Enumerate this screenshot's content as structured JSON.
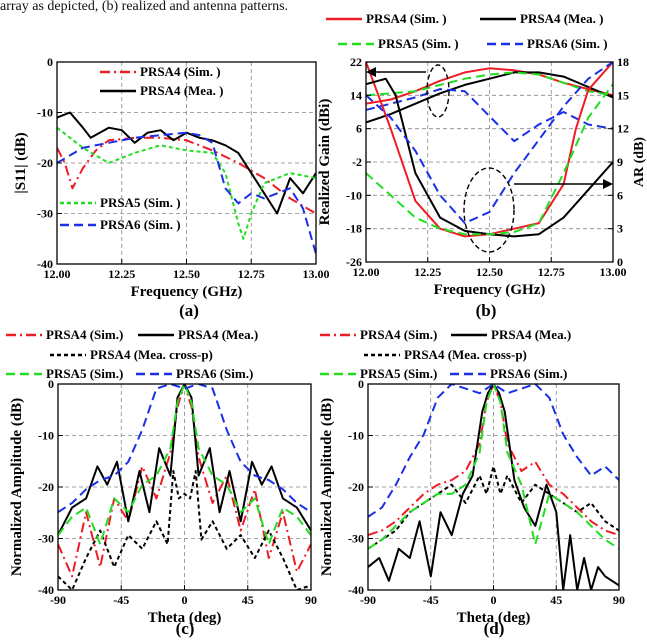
{
  "caption_fragment": "array as depicted, (b) realized and antenna patterns.",
  "colors": {
    "prsa4_sim": "#ee1c24",
    "prsa4_mea": "#000000",
    "prsa5_sim": "#22dd22",
    "prsa6_sim": "#1a2fe6",
    "grid": "#888888"
  },
  "chart_data": [
    {
      "id": "a",
      "type": "line",
      "panel_label": "(a)",
      "xlabel": "Frequency (GHz)",
      "ylabel": "|S11| (dB)",
      "xlim": [
        12.0,
        13.0
      ],
      "ylim": [
        -40,
        0
      ],
      "xticks": [
        "12.00",
        "12.25",
        "12.50",
        "12.75",
        "13.00"
      ],
      "yticks": [
        "0",
        "-10",
        "-20",
        "-30",
        "-40"
      ],
      "grid": true,
      "legend": [
        "PRSA4 (Sim. )",
        "PRSA4 (Mea. )",
        "PRSA5 (Sim. )",
        "PRSA6 (Sim. )"
      ],
      "series": [
        {
          "name": "PRSA4 (Sim. )",
          "style": "dashdot",
          "color": "#ee1c24",
          "x": [
            12.0,
            12.03,
            12.06,
            12.1,
            12.15,
            12.2,
            12.3,
            12.4,
            12.5,
            12.6,
            12.7,
            12.8,
            12.9,
            13.0
          ],
          "y": [
            -17,
            -20,
            -25,
            -21,
            -17.5,
            -15.5,
            -15,
            -15,
            -15.5,
            -17.5,
            -20,
            -23,
            -27,
            -30
          ]
        },
        {
          "name": "PRSA4 (Mea. )",
          "style": "solid",
          "color": "#000000",
          "x": [
            12.0,
            12.05,
            12.1,
            12.13,
            12.2,
            12.25,
            12.3,
            12.35,
            12.4,
            12.45,
            12.5,
            12.55,
            12.6,
            12.65,
            12.7,
            12.75,
            12.8,
            12.85,
            12.9,
            12.95,
            13.0
          ],
          "y": [
            -11,
            -10,
            -13,
            -15,
            -13,
            -13.5,
            -16,
            -14,
            -13.5,
            -15.5,
            -14,
            -15,
            -15.5,
            -16.5,
            -18,
            -22,
            -26,
            -30,
            -23,
            -26,
            -22
          ]
        },
        {
          "name": "PRSA5 (Sim. )",
          "style": "dotted",
          "color": "#22dd22",
          "x": [
            12.0,
            12.1,
            12.2,
            12.3,
            12.4,
            12.5,
            12.6,
            12.65,
            12.7,
            12.72,
            12.75,
            12.8,
            12.9,
            13.0
          ],
          "y": [
            -13,
            -17,
            -20,
            -18,
            -16.5,
            -17.5,
            -18,
            -22,
            -32,
            -35,
            -30,
            -24,
            -22,
            -23
          ]
        },
        {
          "name": "PRSA6 (Sim. )",
          "style": "dashed",
          "color": "#1a2fe6",
          "x": [
            12.0,
            12.1,
            12.2,
            12.3,
            12.4,
            12.5,
            12.55,
            12.6,
            12.65,
            12.7,
            12.75,
            12.8,
            12.9,
            12.95,
            13.0
          ],
          "y": [
            -20,
            -17,
            -16,
            -15,
            -14.5,
            -14,
            -14.5,
            -16,
            -25,
            -28,
            -26,
            -27,
            -25,
            -29,
            -38
          ]
        }
      ]
    },
    {
      "id": "b",
      "type": "line",
      "panel_label": "(b)",
      "xlabel": "Frequency (GHz)",
      "ylabel": "Realized Gain (dBi)",
      "y2label": "AR (dB)",
      "xlim": [
        12.0,
        13.0
      ],
      "ylim": [
        -26,
        22
      ],
      "y2lim": [
        0,
        18
      ],
      "xticks": [
        "12.00",
        "12.25",
        "12.50",
        "12.75",
        "13.00"
      ],
      "yticks": [
        "22",
        "14",
        "6",
        "-2",
        "-10",
        "-18",
        "-26"
      ],
      "y2ticks": [
        "18",
        "15",
        "12",
        "9",
        "6",
        "3",
        "0"
      ],
      "grid": true,
      "legend": [
        "PRSA4 (Sim. )",
        "PRSA4 (Mea. )",
        "PRSA5 (Sim. )",
        "PRSA6 (Sim. )"
      ],
      "series": [
        {
          "name": "PRSA4 (Sim. )",
          "quantity": "Realized Gain (dBi)",
          "style": "solid",
          "color": "#ee1c24",
          "x": [
            12.0,
            12.1,
            12.2,
            12.3,
            12.4,
            12.5,
            12.6,
            12.7,
            12.8,
            12.9,
            13.0
          ],
          "y": [
            12,
            13,
            15,
            17.5,
            19.5,
            20.5,
            20,
            19,
            17,
            15.5,
            14
          ]
        },
        {
          "name": "PRSA4 (Mea. )",
          "quantity": "Realized Gain (dBi)",
          "style": "solid",
          "color": "#000000",
          "x": [
            12.0,
            12.1,
            12.2,
            12.3,
            12.4,
            12.5,
            12.6,
            12.7,
            12.8,
            12.9,
            13.0
          ],
          "y": [
            7.5,
            9.5,
            12,
            14.5,
            16.5,
            18,
            19.5,
            19.5,
            18.5,
            16,
            13.5
          ]
        },
        {
          "name": "PRSA5 (Sim. )",
          "quantity": "Realized Gain (dBi)",
          "style": "dashed",
          "color": "#22dd22",
          "x": [
            12.0,
            12.1,
            12.2,
            12.3,
            12.4,
            12.5,
            12.6,
            12.7,
            12.8,
            12.9,
            13.0
          ],
          "y": [
            14,
            14.5,
            15,
            16.5,
            18,
            19,
            19.5,
            19,
            17,
            15,
            14
          ]
        },
        {
          "name": "PRSA6 (Sim. )",
          "quantity": "Realized Gain (dBi)",
          "style": "dashed",
          "color": "#1a2fe6",
          "x": [
            12.0,
            12.1,
            12.2,
            12.3,
            12.4,
            12.5,
            12.55,
            12.6,
            12.7,
            12.8,
            12.9,
            13.0
          ],
          "y": [
            10.5,
            12,
            13.5,
            15.5,
            15,
            9,
            6,
            3,
            7,
            10,
            7,
            6
          ]
        },
        {
          "name": "PRSA4 (Sim. )",
          "quantity": "AR (dB)",
          "style": "solid",
          "color": "#ee1c24",
          "x": [
            12.0,
            12.05,
            12.1,
            12.2,
            12.3,
            12.4,
            12.5,
            12.6,
            12.7,
            12.8,
            12.85,
            12.9,
            13.0
          ],
          "y": [
            18,
            15,
            12,
            5.5,
            3,
            2.3,
            2.5,
            3,
            3.5,
            7,
            12,
            15.5,
            18
          ]
        },
        {
          "name": "PRSA4 (Mea. )",
          "quantity": "AR (dB)",
          "style": "solid",
          "color": "#000000",
          "x": [
            12.0,
            12.08,
            12.12,
            12.2,
            12.3,
            12.4,
            12.5,
            12.6,
            12.7,
            12.8,
            12.9,
            13.0
          ],
          "y": [
            16,
            16.5,
            15,
            8,
            4,
            2.8,
            2.5,
            2.3,
            2.5,
            4,
            6.5,
            9
          ]
        },
        {
          "name": "PRSA5 (Sim. )",
          "quantity": "AR (dB)",
          "style": "dashed",
          "color": "#22dd22",
          "x": [
            12.0,
            12.1,
            12.2,
            12.3,
            12.4,
            12.5,
            12.6,
            12.7,
            12.8,
            12.9,
            13.0
          ],
          "y": [
            8,
            6,
            4,
            3,
            2.5,
            2.5,
            2.7,
            3.5,
            8,
            13,
            16
          ]
        },
        {
          "name": "PRSA6 (Sim. )",
          "quantity": "AR (dB)",
          "style": "dashed",
          "color": "#1a2fe6",
          "x": [
            12.0,
            12.1,
            12.2,
            12.3,
            12.4,
            12.5,
            12.6,
            12.7,
            12.8,
            12.9,
            13.0
          ],
          "y": [
            15,
            13,
            10,
            6,
            3.5,
            4.5,
            8,
            11,
            14,
            16.5,
            18
          ]
        }
      ]
    },
    {
      "id": "c",
      "type": "line",
      "panel_label": "(c)",
      "xlabel": "Theta (deg)",
      "ylabel": "Normalized Amplitude (dB)",
      "xlim": [
        -90,
        90
      ],
      "ylim": [
        -45,
        0
      ],
      "xticks": [
        "-90",
        "-45",
        "0",
        "45",
        "90"
      ],
      "yticks": [
        "0",
        "-10",
        "-20",
        "-30",
        "-40"
      ],
      "grid": true,
      "legend": [
        "PRSA4 (Sim.)",
        "PRSA4 (Mea.)",
        "PRSA4 (Mea. cross-p)",
        "PRSA5 (Sim.)",
        "PRSA6 (Sim.)"
      ],
      "series": [
        {
          "name": "PRSA4 (Sim.)",
          "style": "dashdot",
          "color": "#ee1c24",
          "x": [
            -90,
            -80,
            -70,
            -60,
            -50,
            -40,
            -30,
            -20,
            -10,
            -5,
            0,
            5,
            10,
            20,
            30,
            40,
            50,
            60,
            70,
            80,
            90
          ],
          "y": [
            -35,
            -42,
            -28,
            -40,
            -25,
            -30,
            -18,
            -25,
            -15,
            -5,
            0,
            -5,
            -16,
            -26,
            -20,
            -32,
            -23,
            -38,
            -28,
            -41,
            -35
          ]
        },
        {
          "name": "PRSA4 (Mea.)",
          "style": "solid",
          "color": "#000000",
          "x": [
            -90,
            -80,
            -70,
            -62,
            -55,
            -48,
            -40,
            -32,
            -25,
            -18,
            -10,
            -5,
            0,
            5,
            10,
            18,
            25,
            32,
            40,
            48,
            55,
            62,
            70,
            80,
            90
          ],
          "y": [
            -33,
            -27,
            -25,
            -18,
            -22,
            -17,
            -30,
            -19,
            -28,
            -14,
            -20,
            -3,
            0,
            -3,
            -20,
            -14,
            -28,
            -19,
            -30,
            -17,
            -22,
            -18,
            -25,
            -27,
            -32
          ]
        },
        {
          "name": "PRSA4 (Mea. cross-p)",
          "style": "dotted",
          "color": "#000000",
          "x": [
            -90,
            -80,
            -70,
            -60,
            -50,
            -40,
            -30,
            -20,
            -12,
            -8,
            -4,
            0,
            4,
            8,
            12,
            20,
            30,
            40,
            50,
            60,
            70,
            80,
            90
          ],
          "y": [
            -42,
            -45,
            -38,
            -32,
            -40,
            -33,
            -36,
            -30,
            -35,
            -19,
            -25,
            -24,
            -25,
            -19,
            -34,
            -30,
            -36,
            -33,
            -38,
            -32,
            -38,
            -45,
            -44
          ]
        },
        {
          "name": "PRSA5 (Sim.)",
          "style": "dashed",
          "color": "#22dd22",
          "x": [
            -90,
            -80,
            -70,
            -60,
            -50,
            -40,
            -30,
            -20,
            -10,
            -5,
            0,
            5,
            10,
            20,
            30,
            40,
            50,
            60,
            70,
            80,
            90
          ],
          "y": [
            -33,
            -29,
            -27,
            -35,
            -25,
            -28,
            -22,
            -20,
            -14,
            -4,
            0,
            -4,
            -14,
            -20,
            -22,
            -28,
            -25,
            -35,
            -27,
            -29,
            -33
          ]
        },
        {
          "name": "PRSA6 (Sim.)",
          "style": "dashed",
          "color": "#1a2fe6",
          "x": [
            -90,
            -80,
            -70,
            -60,
            -50,
            -40,
            -30,
            -20,
            -10,
            0,
            10,
            20,
            30,
            40,
            50,
            60,
            70,
            80,
            90
          ],
          "y": [
            -28,
            -26,
            -23,
            -21,
            -20,
            -17,
            -10,
            -1,
            0,
            -1,
            0,
            -1,
            -10,
            -17,
            -20,
            -21,
            -23,
            -26,
            -28
          ]
        }
      ]
    },
    {
      "id": "d",
      "type": "line",
      "panel_label": "(d)",
      "xlabel": "Theta (deg)",
      "ylabel": "Normalized Amplitude (dB)",
      "xlim": [
        -90,
        90
      ],
      "ylim": [
        -45,
        0
      ],
      "xticks": [
        "-90",
        "-45",
        "0",
        "45",
        "90"
      ],
      "yticks": [
        "0",
        "-10",
        "-20",
        "-30",
        "-40"
      ],
      "grid": true,
      "legend": [
        "PRSA4 (Sim.)",
        "PRSA4 (Mea.)",
        "PRSA4 (Mea. cross-p)",
        "PRSA5 (Sim.)",
        "PRSA6 (Sim.)"
      ],
      "series": [
        {
          "name": "PRSA4 (Sim.)",
          "style": "dashdot",
          "color": "#ee1c24",
          "x": [
            -90,
            -80,
            -70,
            -60,
            -50,
            -40,
            -30,
            -20,
            -10,
            -5,
            0,
            5,
            10,
            20,
            30,
            40,
            50,
            60,
            70,
            80,
            90
          ],
          "y": [
            -33,
            -32,
            -30,
            -27,
            -24,
            -22,
            -21,
            -19,
            -13,
            -4,
            0,
            -4,
            -13,
            -19,
            -17,
            -22,
            -24,
            -27,
            -30,
            -32,
            -33
          ]
        },
        {
          "name": "PRSA4 (Mea.)",
          "style": "solid",
          "color": "#000000",
          "x": [
            -90,
            -82,
            -75,
            -68,
            -60,
            -53,
            -45,
            -38,
            -30,
            -22,
            -15,
            -8,
            -4,
            0,
            4,
            8,
            15,
            22,
            30,
            38,
            45,
            50,
            55,
            60,
            65,
            70,
            75,
            80,
            90
          ],
          "y": [
            -40,
            -38,
            -43,
            -36,
            -38,
            -30,
            -42,
            -28,
            -33,
            -24,
            -20,
            -6,
            -2,
            0,
            -2,
            -6,
            -21,
            -27,
            -31,
            -22,
            -28,
            -45,
            -33,
            -45,
            -38,
            -45,
            -40,
            -42,
            -44
          ]
        },
        {
          "name": "PRSA4 (Mea. cross-p)",
          "style": "dotted",
          "color": "#000000",
          "x": [
            -90,
            -80,
            -70,
            -60,
            -50,
            -40,
            -30,
            -20,
            -10,
            -5,
            0,
            5,
            10,
            20,
            30,
            40,
            50,
            60,
            70,
            80,
            90
          ],
          "y": [
            -36,
            -34,
            -32,
            -28,
            -26,
            -24,
            -22,
            -26,
            -20,
            -24,
            -18,
            -24,
            -20,
            -26,
            -22,
            -24,
            -26,
            -28,
            -26,
            -30,
            -32
          ]
        },
        {
          "name": "PRSA5 (Sim.)",
          "style": "dashed",
          "color": "#22dd22",
          "x": [
            -90,
            -80,
            -70,
            -60,
            -50,
            -40,
            -30,
            -20,
            -10,
            -5,
            0,
            5,
            10,
            20,
            30,
            40,
            50,
            60,
            70,
            80,
            90
          ],
          "y": [
            -36,
            -34,
            -31,
            -28,
            -26,
            -24,
            -24,
            -22,
            -15,
            -4,
            0,
            -4,
            -15,
            -22,
            -35,
            -24,
            -26,
            -28,
            -31,
            -34,
            -36
          ]
        },
        {
          "name": "PRSA6 (Sim.)",
          "style": "dashed",
          "color": "#1a2fe6",
          "x": [
            -90,
            -80,
            -70,
            -60,
            -50,
            -40,
            -30,
            -20,
            -10,
            0,
            10,
            20,
            30,
            40,
            50,
            60,
            70,
            80,
            90
          ],
          "y": [
            -29,
            -27,
            -22,
            -16,
            -11,
            -3,
            0,
            -1,
            -2,
            0,
            -2,
            -1,
            0,
            -3,
            -11,
            -16,
            -20,
            -18,
            -21
          ]
        }
      ]
    }
  ]
}
